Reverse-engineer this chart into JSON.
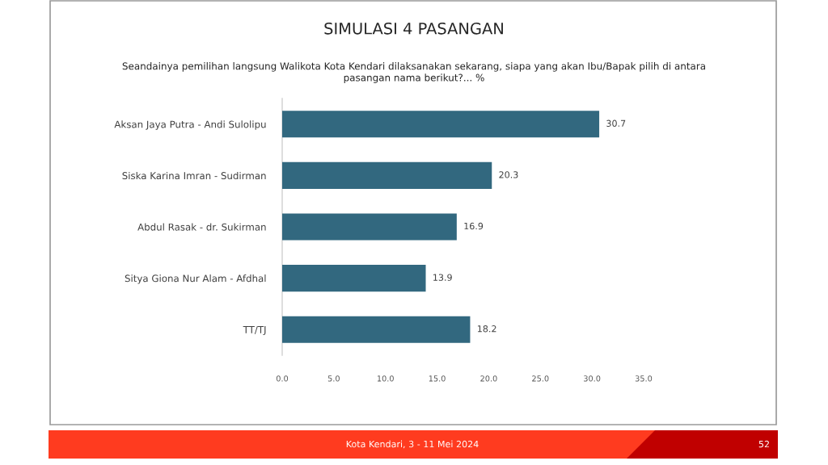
{
  "chart_data": {
    "type": "bar",
    "orientation": "horizontal",
    "title": "SIMULASI 4 PASANGAN",
    "subtitle": "Seandainya pemilihan langsung Walikota Kota Kendari dilaksanakan sekarang, siapa yang akan Ibu/Bapak pilih di antara\npasangan nama berikut?... %",
    "categories": [
      "Aksan Jaya Putra - Andi Sulolipu",
      "Siska Karina Imran - Sudirman",
      "Abdul Rasak - dr. Sukirman",
      "Sitya Giona Nur Alam - Afdhal",
      "TT/TJ"
    ],
    "values": [
      30.7,
      20.3,
      16.9,
      13.9,
      18.2
    ],
    "color": "#32687f",
    "data_labels": true,
    "xlim": [
      0,
      35
    ],
    "xticks": [
      {
        "value": 0,
        "label": "0.0"
      },
      {
        "value": 5,
        "label": "5.0"
      },
      {
        "value": 10,
        "label": "10.0"
      },
      {
        "value": 15,
        "label": "15.0"
      },
      {
        "value": 20,
        "label": "20.0"
      },
      {
        "value": 25,
        "label": "25.0"
      },
      {
        "value": 30,
        "label": "30.0"
      },
      {
        "value": 35,
        "label": "35.0"
      }
    ],
    "annotations": [
      "Kota Kendari, 3 - 11 Mei 2024",
      "52"
    ]
  }
}
